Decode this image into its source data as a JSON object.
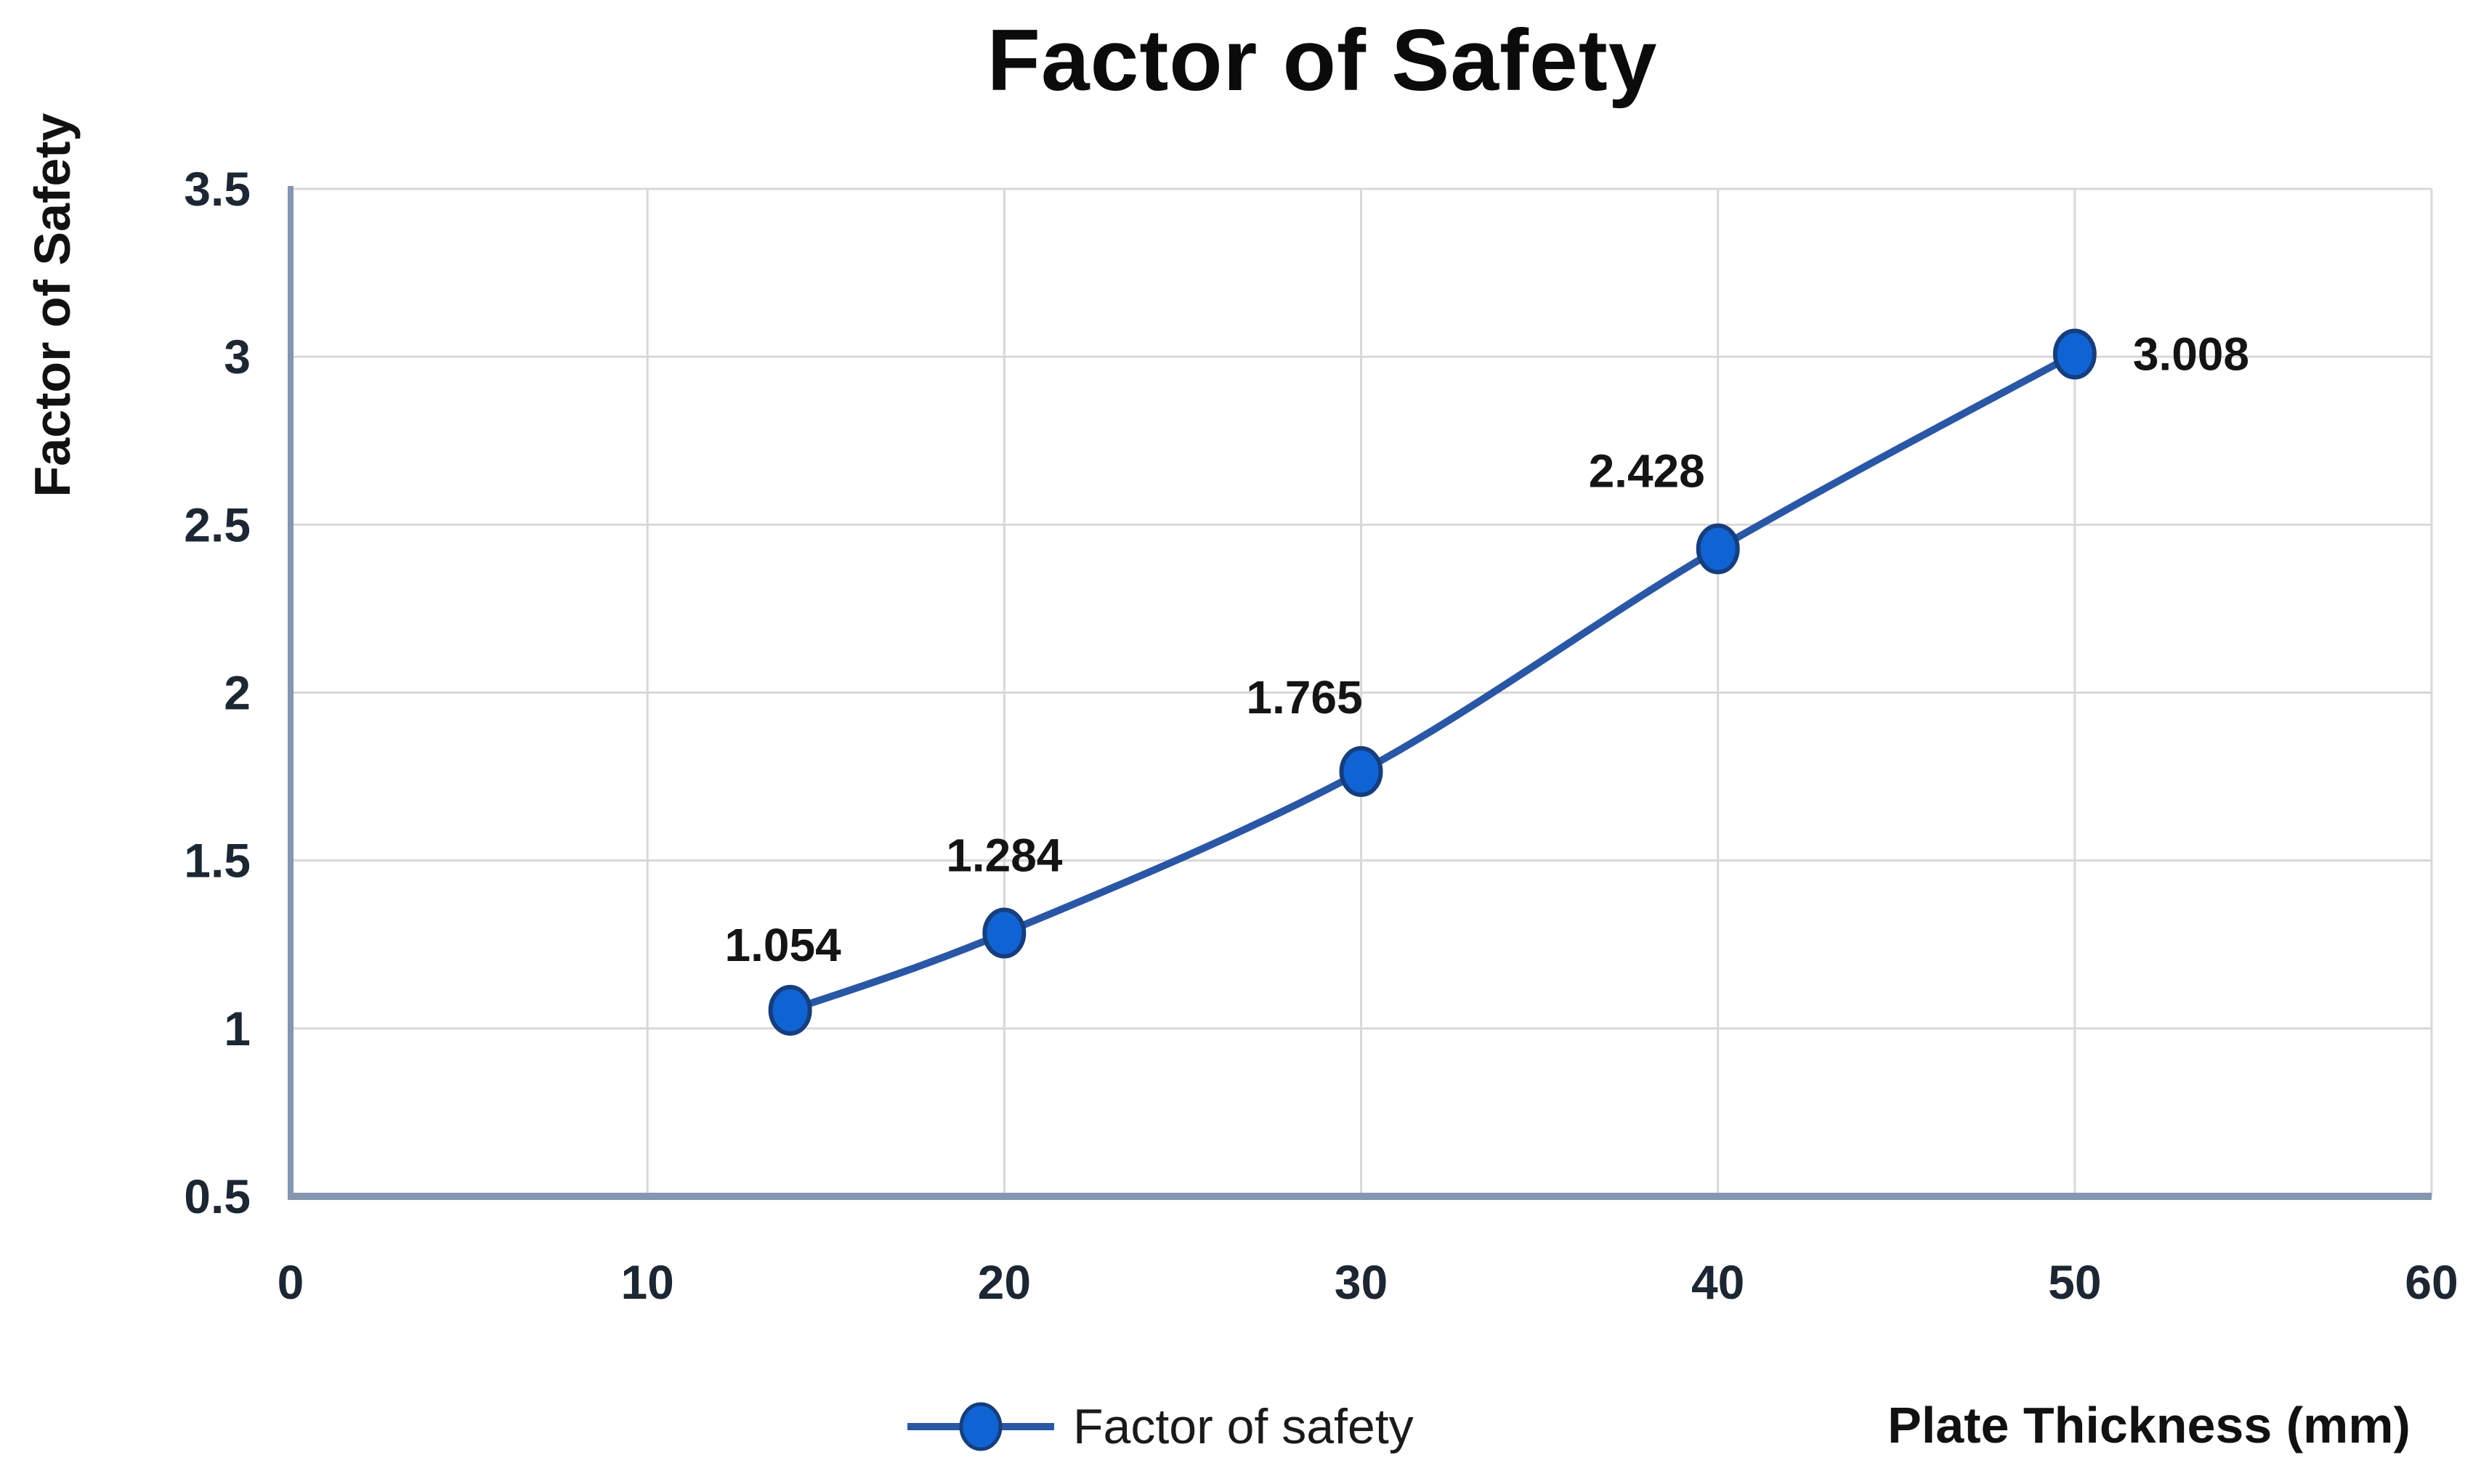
{
  "chart_data": {
    "type": "line",
    "title": "Factor of Safety",
    "xlabel": "Plate Thickness (mm)",
    "ylabel": "Factor of Safety",
    "legend_position": "bottom",
    "grid": true,
    "xlim": [
      0,
      60
    ],
    "ylim": [
      0.5,
      3.5
    ],
    "xticks": [
      0,
      10,
      20,
      30,
      40,
      50,
      60
    ],
    "xtick_labels": [
      "0",
      "10",
      "20",
      "30",
      "40",
      "50",
      "60"
    ],
    "yticks": [
      0.5,
      1,
      1.5,
      2,
      2.5,
      3,
      3.5
    ],
    "ytick_labels": [
      "0.5",
      "1",
      "1.5",
      "2",
      "2.5",
      "3",
      "3.5"
    ],
    "series": [
      {
        "name": "Factor of safety",
        "x": [
          14,
          20,
          30,
          40,
          50
        ],
        "y": [
          1.054,
          1.284,
          1.765,
          2.428,
          3.008
        ],
        "point_labels": [
          "1.054",
          "1.284",
          "1.765",
          "2.428",
          "3.008"
        ]
      }
    ],
    "colors": {
      "line": "#2a57a5",
      "marker_fill": "#1063d2",
      "marker_stroke": "#163e7e",
      "gridline": "#d8d8d8",
      "axis_line": "#8496b0",
      "tick_text": "#1c2733",
      "data_label_text": "#141414",
      "title_text": "#0b0b0b"
    }
  }
}
